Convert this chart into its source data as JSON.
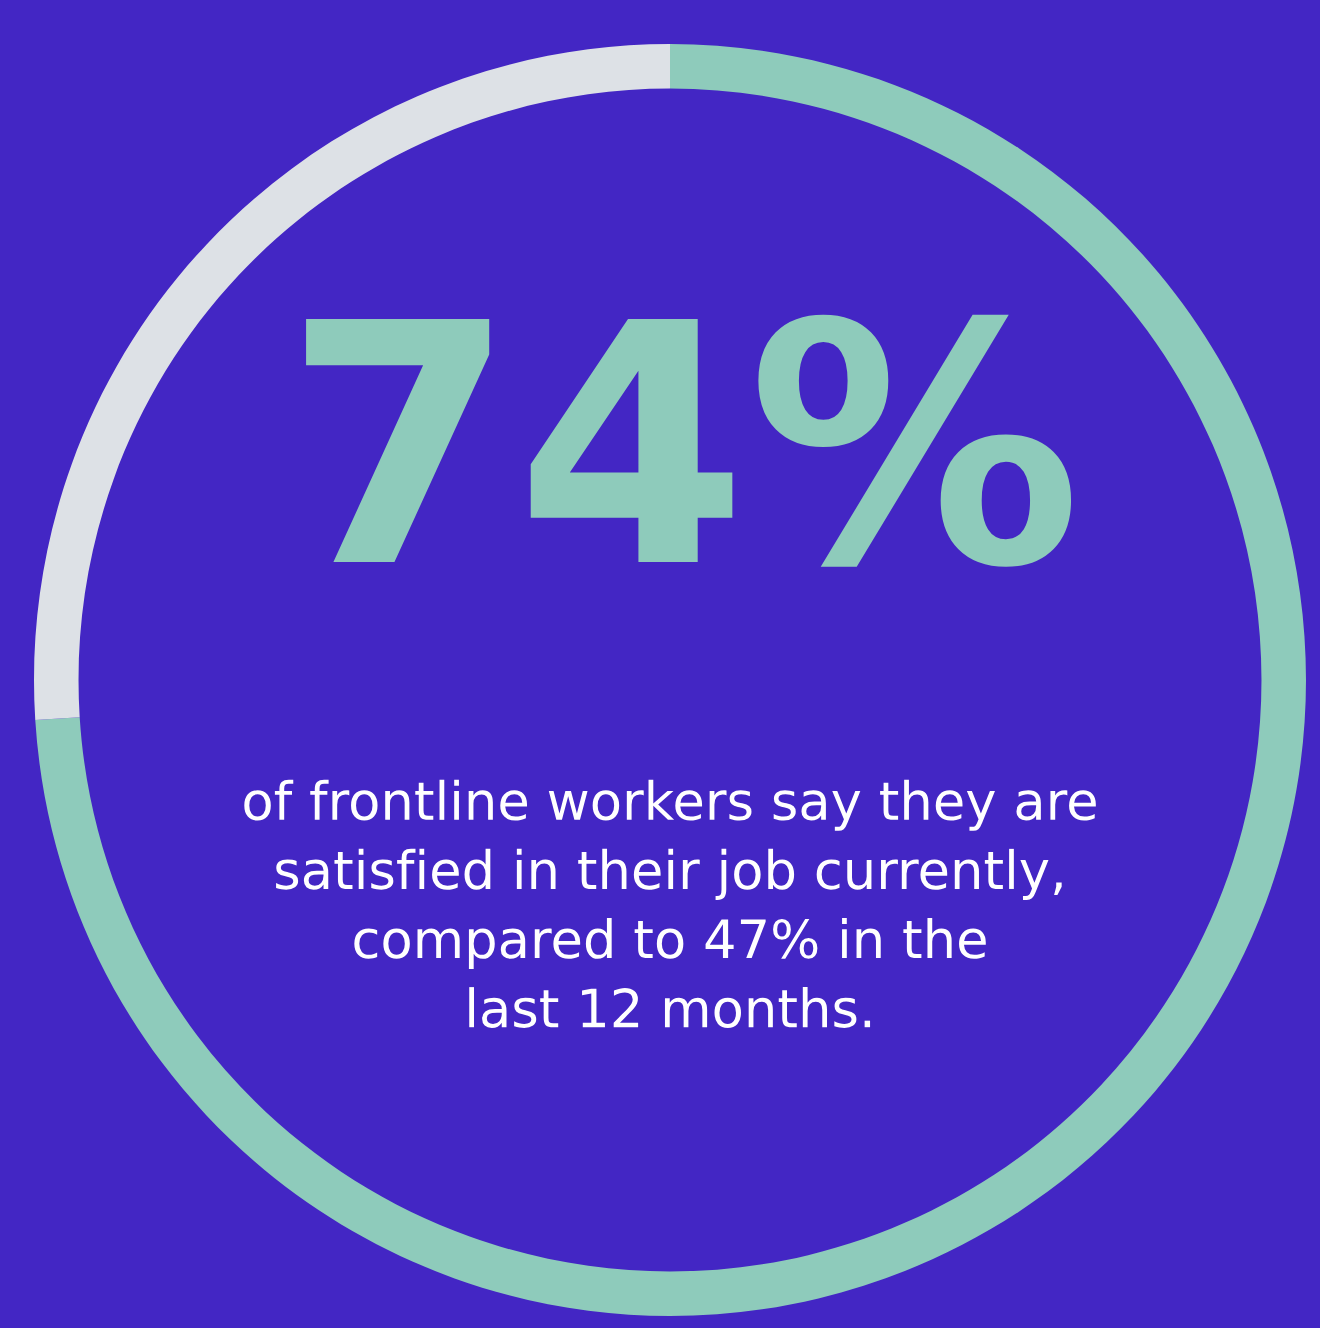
{
  "chart_data": {
    "type": "donut",
    "categories": [
      null,
      null
    ],
    "values": [
      74,
      26
    ],
    "colors": [
      "#8ecbbb",
      "#dde1e6"
    ],
    "value_labels": [
      "74%",
      null
    ],
    "annotations": [
      "of frontline workers say they are\nsatisfied in their job currently,\ncompared to 47% in the\nlast 12 months."
    ]
  }
}
